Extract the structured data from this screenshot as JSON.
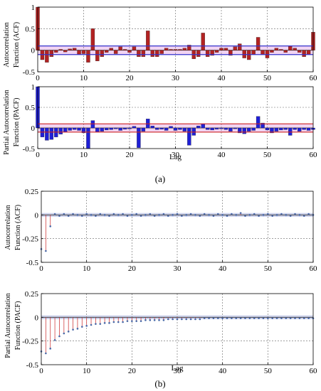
{
  "figure": {
    "caption_a": "(a)",
    "caption_b": "(b)",
    "colors": {
      "acf_bar": "#b22222",
      "pacf_bar": "#1f1fd6",
      "conf_band": "#e8b0e8",
      "conf_line_blue": "#3333cc",
      "conf_line_red": "#cc2222",
      "stem": "#d04040",
      "stem_marker": "#4a6aa8",
      "band_b": "#c8cdea"
    }
  },
  "chart_data": [
    {
      "id": "a_acf",
      "type": "bar",
      "ylabel": "Autocorrelation Function (ACF)",
      "xlabel": "",
      "xlim": [
        0,
        60
      ],
      "ylim": [
        -0.5,
        1
      ],
      "xticks": [
        0,
        10,
        20,
        30,
        40,
        50,
        60
      ],
      "yticks": [
        -0.5,
        0,
        0.5,
        1
      ],
      "ytick_labels": [
        "-0.5",
        "0",
        "0.5",
        "1"
      ],
      "grid": true,
      "conf": 0.1,
      "lags": [
        0,
        1,
        2,
        3,
        4,
        5,
        6,
        7,
        8,
        9,
        10,
        11,
        12,
        13,
        14,
        15,
        16,
        17,
        18,
        19,
        20,
        21,
        22,
        23,
        24,
        25,
        26,
        27,
        28,
        29,
        30,
        31,
        32,
        33,
        34,
        35,
        36,
        37,
        38,
        39,
        40,
        41,
        42,
        43,
        44,
        45,
        46,
        47,
        48,
        49,
        50,
        51,
        52,
        53,
        54,
        55,
        56,
        57,
        58,
        59,
        60
      ],
      "values": [
        1.0,
        -0.22,
        -0.28,
        -0.15,
        -0.05,
        0.02,
        -0.04,
        0.03,
        0.05,
        -0.1,
        -0.08,
        -0.28,
        0.5,
        -0.25,
        -0.15,
        -0.05,
        0.05,
        -0.08,
        0.08,
        0.02,
        -0.05,
        0.08,
        -0.15,
        -0.15,
        0.45,
        -0.15,
        -0.15,
        -0.08,
        0.05,
        0.02,
        0.02,
        0.02,
        0.05,
        0.12,
        -0.2,
        -0.15,
        0.4,
        -0.15,
        -0.12,
        -0.05,
        0.05,
        0.05,
        -0.12,
        0.08,
        0.15,
        -0.18,
        -0.22,
        -0.1,
        0.3,
        -0.1,
        -0.18,
        -0.05,
        0.05,
        0.02,
        -0.05,
        0.1,
        0.05,
        -0.05,
        -0.15,
        -0.1,
        0.42
      ]
    },
    {
      "id": "a_pacf",
      "type": "bar",
      "ylabel": "Partial Autocorrelation Function (PACF)",
      "xlabel": "Lag",
      "xlim": [
        0,
        60
      ],
      "ylim": [
        -0.5,
        1
      ],
      "xticks": [
        0,
        10,
        20,
        30,
        40,
        50,
        60
      ],
      "yticks": [
        -0.5,
        0,
        0.5,
        1
      ],
      "ytick_labels": [
        "-0.5",
        "0",
        "0.5",
        "1"
      ],
      "grid": true,
      "conf": 0.1,
      "lags": [
        0,
        1,
        2,
        3,
        4,
        5,
        6,
        7,
        8,
        9,
        10,
        11,
        12,
        13,
        14,
        15,
        16,
        17,
        18,
        19,
        20,
        21,
        22,
        23,
        24,
        25,
        26,
        27,
        28,
        29,
        30,
        31,
        32,
        33,
        34,
        35,
        36,
        37,
        38,
        39,
        40,
        41,
        42,
        43,
        44,
        45,
        46,
        47,
        48,
        49,
        50,
        51,
        52,
        53,
        54,
        55,
        56,
        57,
        58,
        59,
        60
      ],
      "values": [
        1.0,
        -0.22,
        -0.3,
        -0.28,
        -0.22,
        -0.15,
        -0.1,
        -0.06,
        -0.04,
        -0.06,
        -0.12,
        -0.5,
        0.18,
        -0.1,
        -0.08,
        -0.05,
        -0.04,
        -0.02,
        -0.06,
        -0.03,
        -0.02,
        0.04,
        -0.48,
        -0.08,
        0.22,
        0.05,
        -0.04,
        -0.03,
        -0.06,
        0.04,
        -0.06,
        -0.04,
        -0.08,
        -0.42,
        -0.18,
        0.05,
        0.1,
        -0.04,
        -0.05,
        -0.03,
        -0.02,
        -0.04,
        -0.08,
        -0.02,
        -0.12,
        -0.14,
        -0.08,
        -0.06,
        0.28,
        0.12,
        -0.05,
        -0.12,
        -0.08,
        -0.05,
        -0.04,
        -0.18,
        -0.04,
        -0.08,
        -0.04,
        -0.06,
        -0.04
      ]
    },
    {
      "id": "b_acf",
      "type": "stem",
      "ylabel": "Autocorrelation Function (ACF)",
      "xlabel": "",
      "xlim": [
        0,
        60
      ],
      "ylim": [
        -0.5,
        0.25
      ],
      "xticks": [
        0,
        10,
        20,
        30,
        40,
        50,
        60
      ],
      "yticks": [
        -0.5,
        -0.25,
        0,
        0.25
      ],
      "ytick_labels": [
        "-0.5",
        "-0.25",
        "0",
        "0.25"
      ],
      "grid": true,
      "conf": 0.02,
      "lags": [
        0,
        1,
        2,
        3,
        4,
        5,
        6,
        7,
        8,
        9,
        10,
        11,
        12,
        13,
        14,
        15,
        16,
        17,
        18,
        19,
        20,
        21,
        22,
        23,
        24,
        25,
        26,
        27,
        28,
        29,
        30,
        31,
        32,
        33,
        34,
        35,
        36,
        37,
        38,
        39,
        40,
        41,
        42,
        43,
        44,
        45,
        46,
        47,
        48,
        49,
        50,
        51,
        52,
        53,
        54,
        55,
        56,
        57,
        58,
        59,
        60
      ],
      "values": [
        -0.36,
        -0.38,
        -0.12,
        0.01,
        -0.01,
        0.01,
        -0.01,
        0.01,
        0.0,
        -0.01,
        0.01,
        0.0,
        -0.01,
        0.01,
        0.0,
        -0.01,
        0.01,
        0.0,
        0.01,
        -0.01,
        0.0,
        0.01,
        -0.01,
        0.0,
        0.01,
        -0.01,
        0.0,
        0.01,
        -0.01,
        0.0,
        0.01,
        -0.01,
        0.0,
        0.01,
        0.0,
        -0.01,
        0.01,
        0.0,
        -0.01,
        0.01,
        0.0,
        -0.01,
        0.01,
        0.0,
        0.02,
        -0.01,
        0.0,
        0.01,
        -0.01,
        0.0,
        0.01,
        -0.01,
        0.0,
        0.01,
        0.0,
        -0.01,
        0.01,
        0.0,
        -0.01,
        0.01,
        0.0
      ]
    },
    {
      "id": "b_pacf",
      "type": "stem",
      "ylabel": "Partial Autocorrelation Function (PACF)",
      "xlabel": "Lag",
      "xlim": [
        0,
        60
      ],
      "ylim": [
        -0.5,
        0.25
      ],
      "xticks": [
        0,
        10,
        20,
        30,
        40,
        50,
        60
      ],
      "yticks": [
        -0.5,
        -0.25,
        0,
        0.25
      ],
      "ytick_labels": [
        "-0.5",
        "-0.25",
        "0",
        "0.25"
      ],
      "grid": true,
      "conf": 0.02,
      "lags": [
        0,
        1,
        2,
        3,
        4,
        5,
        6,
        7,
        8,
        9,
        10,
        11,
        12,
        13,
        14,
        15,
        16,
        17,
        18,
        19,
        20,
        21,
        22,
        23,
        24,
        25,
        26,
        27,
        28,
        29,
        30,
        31,
        32,
        33,
        34,
        35,
        36,
        37,
        38,
        39,
        40,
        41,
        42,
        43,
        44,
        45,
        46,
        47,
        48,
        49,
        50,
        51,
        52,
        53,
        54,
        55,
        56,
        57,
        58,
        59,
        60
      ],
      "values": [
        -0.36,
        -0.38,
        -0.33,
        -0.24,
        -0.2,
        -0.17,
        -0.15,
        -0.13,
        -0.12,
        -0.1,
        -0.09,
        -0.08,
        -0.07,
        -0.07,
        -0.06,
        -0.06,
        -0.05,
        -0.05,
        -0.05,
        -0.04,
        -0.04,
        -0.04,
        -0.04,
        -0.03,
        -0.03,
        -0.03,
        -0.03,
        -0.03,
        -0.02,
        -0.02,
        -0.02,
        -0.02,
        -0.02,
        -0.02,
        -0.02,
        -0.02,
        -0.01,
        -0.01,
        -0.01,
        -0.01,
        -0.01,
        -0.01,
        -0.01,
        -0.01,
        -0.01,
        -0.01,
        -0.01,
        -0.01,
        -0.01,
        -0.01,
        -0.01,
        -0.01,
        -0.01,
        -0.01,
        -0.01,
        -0.01,
        -0.01,
        -0.01,
        -0.01,
        -0.01,
        -0.01
      ]
    }
  ]
}
